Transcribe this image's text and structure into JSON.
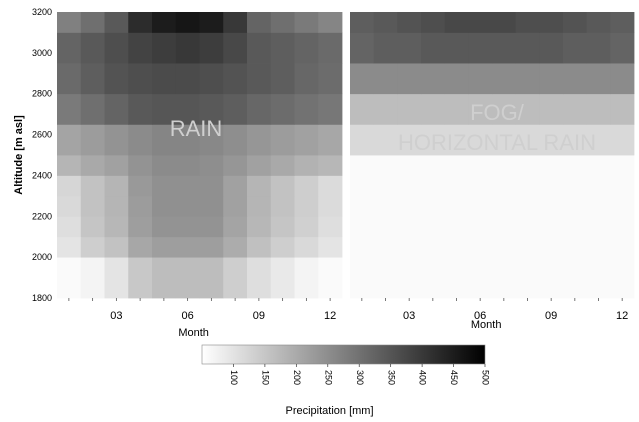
{
  "chart_data": {
    "type": "heatmap",
    "ylabel": "Altitude [m asl]",
    "y_ticks": [
      "3200",
      "3000",
      "2800",
      "2600",
      "2400",
      "2200",
      "2000",
      "1800"
    ],
    "ylim": [
      1800,
      3200
    ],
    "months": [
      1,
      2,
      3,
      4,
      5,
      6,
      7,
      8,
      9,
      10,
      11,
      12
    ],
    "x_tick_labels": [
      "03",
      "06",
      "09",
      "12"
    ],
    "x_tick_months": [
      3,
      6,
      9,
      12
    ],
    "xlabel": "Month",
    "altitude_bands": [
      1800,
      2000,
      2100,
      2200,
      2300,
      2400,
      2500,
      2650,
      2800,
      2950,
      3100,
      3200
    ],
    "panels": [
      {
        "annotation": [
          "RAIN"
        ],
        "values": [
          [
            40,
            60,
            90,
            140,
            160,
            160,
            160,
            130,
            100,
            80,
            60,
            40
          ],
          [
            90,
            130,
            150,
            200,
            215,
            215,
            215,
            190,
            155,
            130,
            110,
            90
          ],
          [
            100,
            145,
            170,
            215,
            235,
            235,
            235,
            205,
            170,
            145,
            125,
            100
          ],
          [
            110,
            150,
            175,
            220,
            240,
            240,
            240,
            210,
            175,
            150,
            130,
            105
          ],
          [
            115,
            150,
            175,
            225,
            240,
            240,
            240,
            210,
            175,
            150,
            130,
            105
          ],
          [
            175,
            195,
            210,
            235,
            250,
            250,
            245,
            230,
            210,
            195,
            180,
            170
          ],
          [
            205,
            220,
            235,
            250,
            260,
            260,
            255,
            245,
            230,
            220,
            210,
            200
          ],
          [
            280,
            300,
            320,
            340,
            345,
            345,
            340,
            330,
            315,
            305,
            295,
            285
          ],
          [
            310,
            330,
            350,
            360,
            365,
            365,
            360,
            350,
            340,
            330,
            315,
            305
          ],
          [
            320,
            340,
            360,
            380,
            390,
            400,
            390,
            370,
            340,
            330,
            320,
            310
          ],
          [
            270,
            300,
            340,
            420,
            450,
            460,
            450,
            400,
            320,
            300,
            280,
            260
          ],
          [
            260,
            300,
            370,
            460,
            480,
            500,
            470,
            420,
            280,
            260,
            330,
            300
          ]
        ]
      },
      {
        "annotation": [
          "FOG/",
          "HORIZONTAL RAIN"
        ],
        "values": [
          [
            10,
            10,
            10,
            10,
            10,
            10,
            10,
            10,
            10,
            10,
            10,
            10
          ],
          [
            20,
            20,
            20,
            20,
            20,
            20,
            20,
            20,
            20,
            20,
            20,
            20
          ],
          [
            25,
            25,
            25,
            25,
            25,
            25,
            25,
            25,
            25,
            25,
            25,
            25
          ],
          [
            30,
            30,
            30,
            30,
            30,
            30,
            30,
            30,
            30,
            30,
            30,
            30
          ],
          [
            35,
            35,
            35,
            35,
            35,
            35,
            35,
            35,
            35,
            35,
            35,
            35
          ],
          [
            45,
            45,
            45,
            45,
            45,
            45,
            45,
            45,
            45,
            45,
            45,
            45
          ],
          [
            110,
            110,
            110,
            110,
            110,
            110,
            110,
            110,
            110,
            110,
            110,
            110
          ],
          [
            160,
            160,
            160,
            160,
            160,
            160,
            160,
            160,
            160,
            160,
            160,
            160
          ],
          [
            250,
            250,
            250,
            250,
            250,
            250,
            250,
            250,
            250,
            250,
            250,
            250
          ],
          [
            320,
            330,
            330,
            340,
            340,
            340,
            340,
            340,
            340,
            330,
            330,
            320
          ],
          [
            330,
            340,
            350,
            360,
            370,
            370,
            370,
            360,
            360,
            350,
            340,
            330
          ],
          [
            330,
            340,
            350,
            360,
            370,
            370,
            370,
            360,
            360,
            350,
            340,
            330
          ]
        ]
      }
    ],
    "colorbar": {
      "label": "Precipitation [mm]",
      "range": [
        50,
        500
      ],
      "ticks": [
        "100",
        "150",
        "200",
        "250",
        "300",
        "350",
        "400",
        "450",
        "500"
      ],
      "tick_values": [
        100,
        150,
        200,
        250,
        300,
        350,
        400,
        450,
        500
      ],
      "colors": {
        "low": "#ffffff",
        "high": "#000000"
      }
    }
  }
}
